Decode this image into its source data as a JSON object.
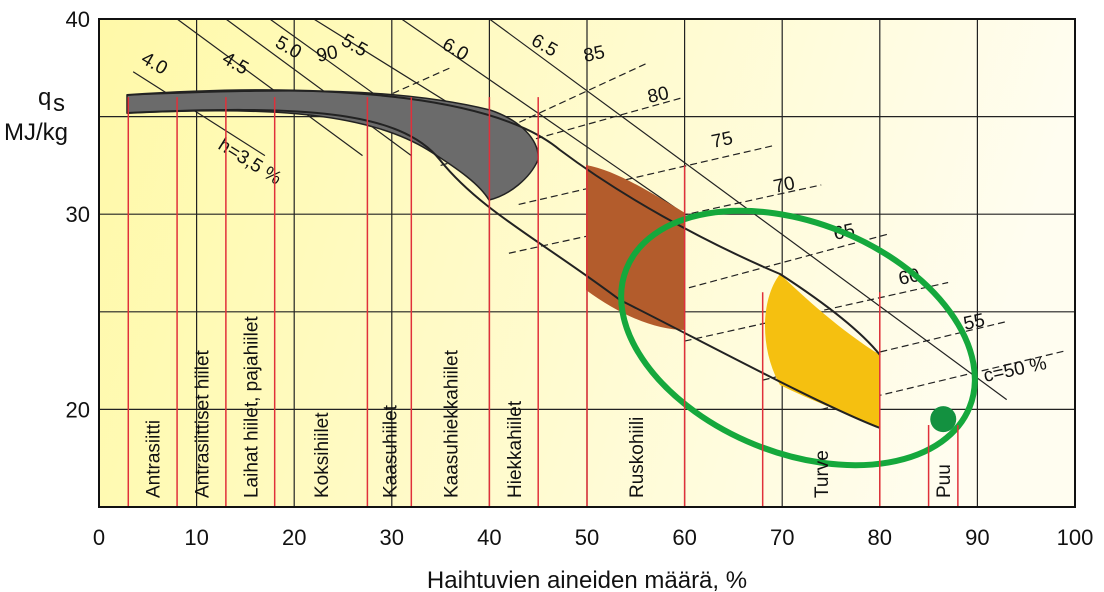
{
  "chart_data": {
    "type": "area",
    "xlabel": "Haihtuvien aineiden määrä, %",
    "ylabel_symbol": "q",
    "ylabel_sub": "s",
    "ylabel_unit": "MJ/kg",
    "xlim": [
      0,
      100
    ],
    "ylim": [
      15,
      40
    ],
    "x_ticks": [
      {
        "value": 0,
        "label": "0"
      },
      {
        "value": 10,
        "label": "10"
      },
      {
        "value": 20,
        "label": "20"
      },
      {
        "value": 30,
        "label": "30"
      },
      {
        "value": 40,
        "label": "40"
      },
      {
        "value": 50,
        "label": "50"
      },
      {
        "value": 60,
        "label": "60"
      },
      {
        "value": 70,
        "label": "70"
      },
      {
        "value": 80,
        "label": "80"
      },
      {
        "value": 90,
        "label": "90"
      },
      {
        "value": 100,
        "label": "100"
      }
    ],
    "y_ticks": [
      {
        "value": 20,
        "label": "20"
      },
      {
        "value": 30,
        "label": "30"
      },
      {
        "value": 40,
        "label": "40"
      }
    ],
    "grid": true,
    "colors": {
      "background_left": "#fff9a8",
      "background_right": "#fffdf0",
      "coal_region": "#6b6b6b",
      "brown_coal": "#b35c2c",
      "peat": "#f5c010",
      "wood": "#139140",
      "highlight_ellipse": "#15a83c",
      "boundary_lines": "#e0303a"
    },
    "fuel_regions": [
      {
        "name": "Antrasiitti",
        "x_from": 3,
        "x_to": 8
      },
      {
        "name": "Antrasiittiset hiilet",
        "x_from": 8,
        "x_to": 13
      },
      {
        "name": "Laihat hiilet, pajahiilet",
        "x_from": 13,
        "x_to": 18
      },
      {
        "name": "Koksihiilet",
        "x_from": 18,
        "x_to": 27.5
      },
      {
        "name": "Kaasuhiilet",
        "x_from": 27.5,
        "x_to": 32
      },
      {
        "name": "Kaasuhiekkahiilet",
        "x_from": 32,
        "x_to": 40
      },
      {
        "name": "Hiekkahiilet",
        "x_from": 40,
        "x_to": 45
      },
      {
        "name": "Ruskohiili",
        "x_from": 50,
        "x_to": 60
      },
      {
        "name": "Turve",
        "x_from": 68,
        "x_to": 80
      },
      {
        "name": "Puu",
        "x_from": 85,
        "x_to": 88
      }
    ],
    "hydrogen_lines": [
      {
        "label": "h=3,5 %",
        "value": 3.5
      },
      {
        "label": "4.0",
        "value": 4.0
      },
      {
        "label": "4.5",
        "value": 4.5
      },
      {
        "label": "5.0",
        "value": 5.0
      },
      {
        "label": "5.5",
        "value": 5.5
      },
      {
        "label": "6.0",
        "value": 6.0
      },
      {
        "label": "6.5",
        "value": 6.5
      }
    ],
    "carbon_lines": [
      {
        "label": "90",
        "value": 90
      },
      {
        "label": "85",
        "value": 85
      },
      {
        "label": "80",
        "value": 80
      },
      {
        "label": "75",
        "value": 75
      },
      {
        "label": "70",
        "value": 70
      },
      {
        "label": "65",
        "value": 65
      },
      {
        "label": "60",
        "value": 60
      },
      {
        "label": "55",
        "value": 55
      },
      {
        "label": "c=50 %",
        "value": 50
      }
    ],
    "areas": [
      {
        "name": "coal",
        "x_range": [
          3,
          45
        ],
        "y_range": [
          31,
          36.5
        ]
      },
      {
        "name": "brown coal",
        "x_range": [
          50.5,
          60
        ],
        "y_range": [
          24,
          32.8
        ]
      },
      {
        "name": "peat",
        "x_range": [
          68,
          80
        ],
        "y_range": [
          19.7,
          27
        ]
      },
      {
        "name": "wood",
        "x": 86.5,
        "y": 19.5
      }
    ]
  }
}
